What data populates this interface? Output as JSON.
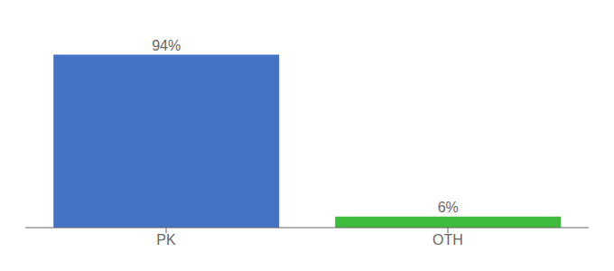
{
  "chart_data": {
    "type": "bar",
    "categories": [
      "PK",
      "OTH"
    ],
    "values": [
      94,
      6
    ],
    "value_labels": [
      "94%",
      "6%"
    ],
    "colors": [
      "#4472c4",
      "#3dbb3d"
    ],
    "ylim": [
      0,
      108
    ],
    "data_labels": true,
    "tick_labels": "x",
    "grid": false
  }
}
